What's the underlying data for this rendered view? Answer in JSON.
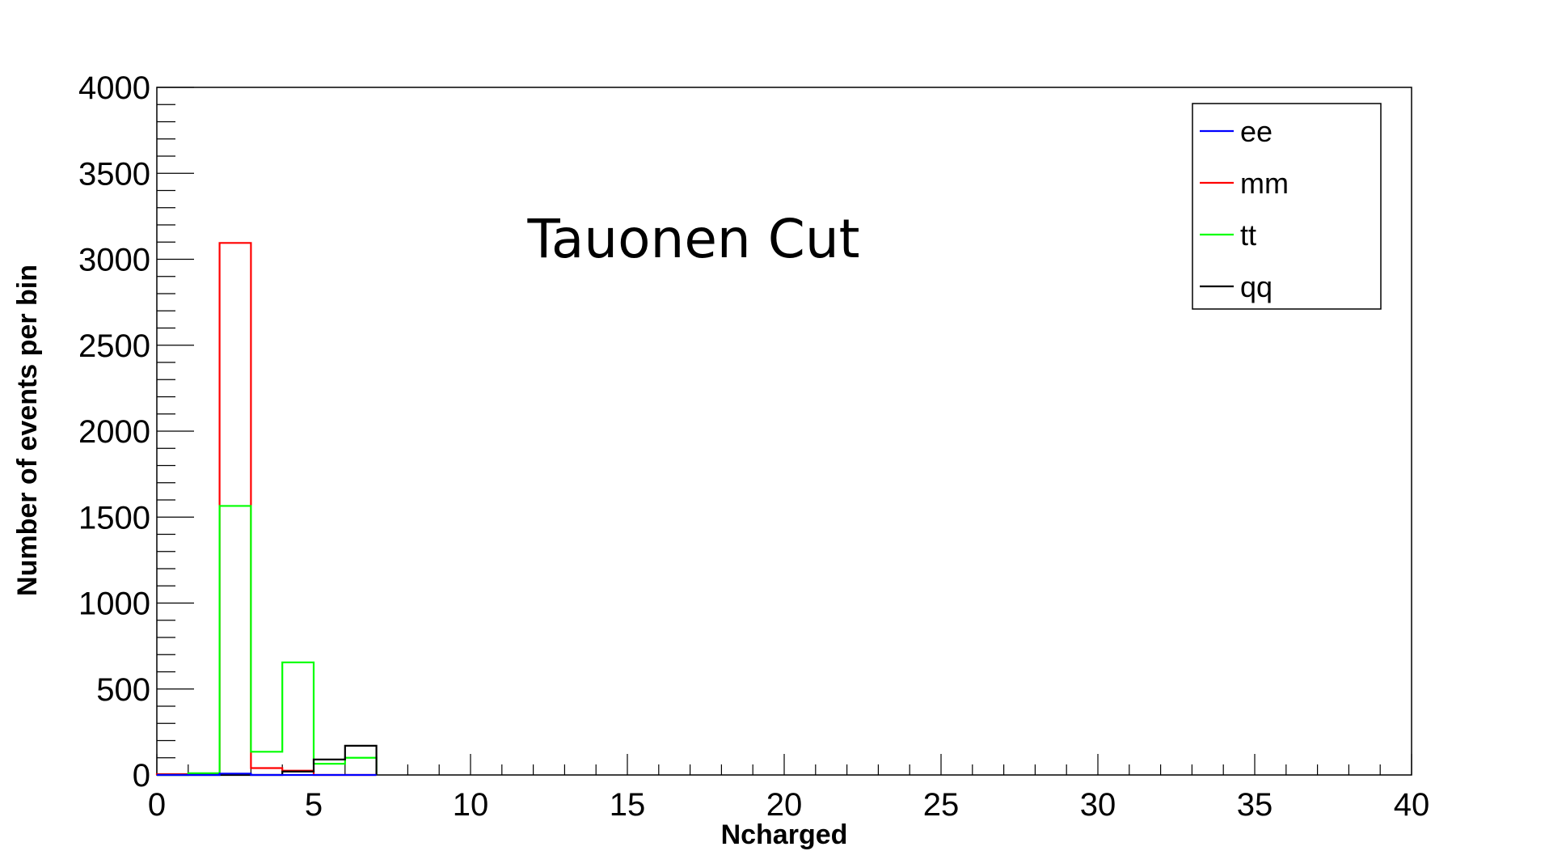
{
  "chart_data": {
    "type": "histogram",
    "title": "Tauonen Cut",
    "xlabel": "Ncharged",
    "ylabel": "Number of events per bin",
    "xlim": [
      0,
      40
    ],
    "ylim": [
      0,
      4000
    ],
    "x_ticks": [
      "0",
      "5",
      "10",
      "15",
      "20",
      "25",
      "30",
      "35",
      "40"
    ],
    "y_ticks": [
      "0",
      "500",
      "1000",
      "1500",
      "2000",
      "2500",
      "3000",
      "3500",
      "4000"
    ],
    "bin_edges": [
      0,
      1,
      2,
      3,
      4,
      5,
      6,
      7
    ],
    "grid": false,
    "legend_position": "top-right",
    "series": [
      {
        "name": "ee",
        "color": "#0000ff",
        "values": [
          0,
          0,
          8,
          0,
          0,
          0,
          0
        ]
      },
      {
        "name": "mm",
        "color": "#ff0000",
        "values": [
          5,
          5,
          3095,
          40,
          25,
          0,
          0
        ]
      },
      {
        "name": "tt",
        "color": "#00ff00",
        "values": [
          0,
          10,
          1565,
          135,
          655,
          65,
          100
        ]
      },
      {
        "name": "qq",
        "color": "#000000",
        "values": [
          0,
          0,
          0,
          0,
          20,
          90,
          170
        ]
      }
    ]
  }
}
